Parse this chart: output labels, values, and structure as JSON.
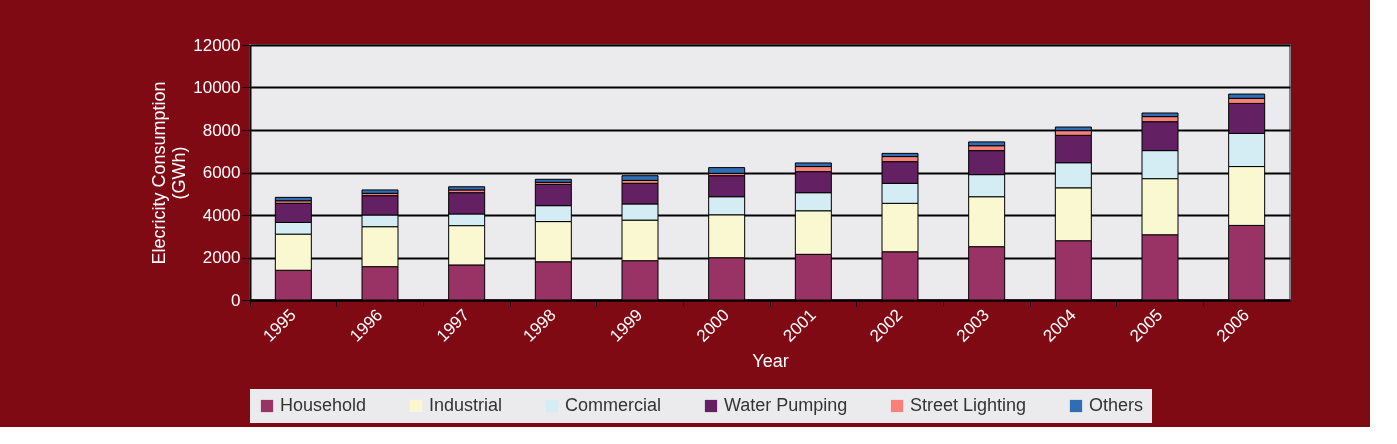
{
  "chart_data": {
    "type": "bar",
    "stacked": true,
    "xlabel": "Year",
    "ylabel": "Elecricity Consumption\n(GWh)",
    "categories": [
      "1995",
      "1996",
      "1997",
      "1998",
      "1999",
      "2000",
      "2001",
      "2002",
      "2003",
      "2004",
      "2005",
      "2006"
    ],
    "series": [
      {
        "name": "Household",
        "color": "#993366",
        "values": [
          1400,
          1570,
          1650,
          1800,
          1850,
          1990,
          2150,
          2270,
          2510,
          2790,
          3070,
          3510
        ]
      },
      {
        "name": "Industrial",
        "color": "#f9f8d0",
        "values": [
          1700,
          1880,
          1850,
          1890,
          1910,
          2020,
          2050,
          2280,
          2350,
          2490,
          2640,
          2770
        ]
      },
      {
        "name": "Commercial",
        "color": "#d4ecf3",
        "values": [
          550,
          550,
          550,
          750,
          760,
          850,
          850,
          940,
          1040,
          1180,
          1320,
          1560
        ]
      },
      {
        "name": "Water Pumping",
        "color": "#632163",
        "values": [
          900,
          910,
          1000,
          1000,
          970,
          990,
          990,
          1020,
          1130,
          1290,
          1360,
          1410
        ]
      },
      {
        "name": "Street Lighting",
        "color": "#f88078",
        "values": [
          120,
          110,
          130,
          100,
          140,
          110,
          240,
          240,
          230,
          220,
          240,
          240
        ]
      },
      {
        "name": "Others",
        "color": "#2f6db5",
        "values": [
          160,
          160,
          150,
          140,
          220,
          270,
          170,
          150,
          180,
          170,
          170,
          200
        ]
      }
    ],
    "ylim": [
      0,
      12000
    ],
    "yticks": [
      0,
      2000,
      4000,
      6000,
      8000,
      10000,
      12000
    ],
    "grid": "y",
    "legend": "bottom"
  }
}
